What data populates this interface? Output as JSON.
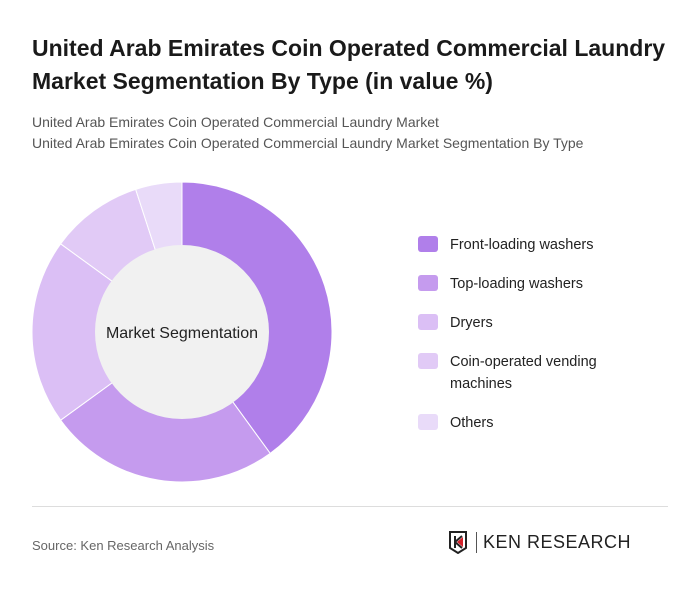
{
  "title": "United Arab Emirates Coin Operated Commercial Laundry Market Segmentation By Type (in value %)",
  "subtitle_1": "United Arab Emirates Coin Operated Commercial Laundry Market",
  "subtitle_2": "United Arab Emirates Coin Operated Commercial Laundry Market Segmentation By Type",
  "source": "Source: Ken Research Analysis",
  "logo_text": "KEN RESEARCH",
  "chart_data": {
    "type": "pie",
    "variant": "donut",
    "center_label": "Market Segmentation",
    "legend_position": "right",
    "categories": [
      "Front-loading washers",
      "Top-loading washers",
      "Dryers",
      "Coin-operated vending machines",
      "Others"
    ],
    "values": [
      40,
      25,
      20,
      10,
      5
    ],
    "colors": [
      "#b07fea",
      "#c59bee",
      "#dbbff5",
      "#e1caf6",
      "#e9dbf9"
    ]
  }
}
